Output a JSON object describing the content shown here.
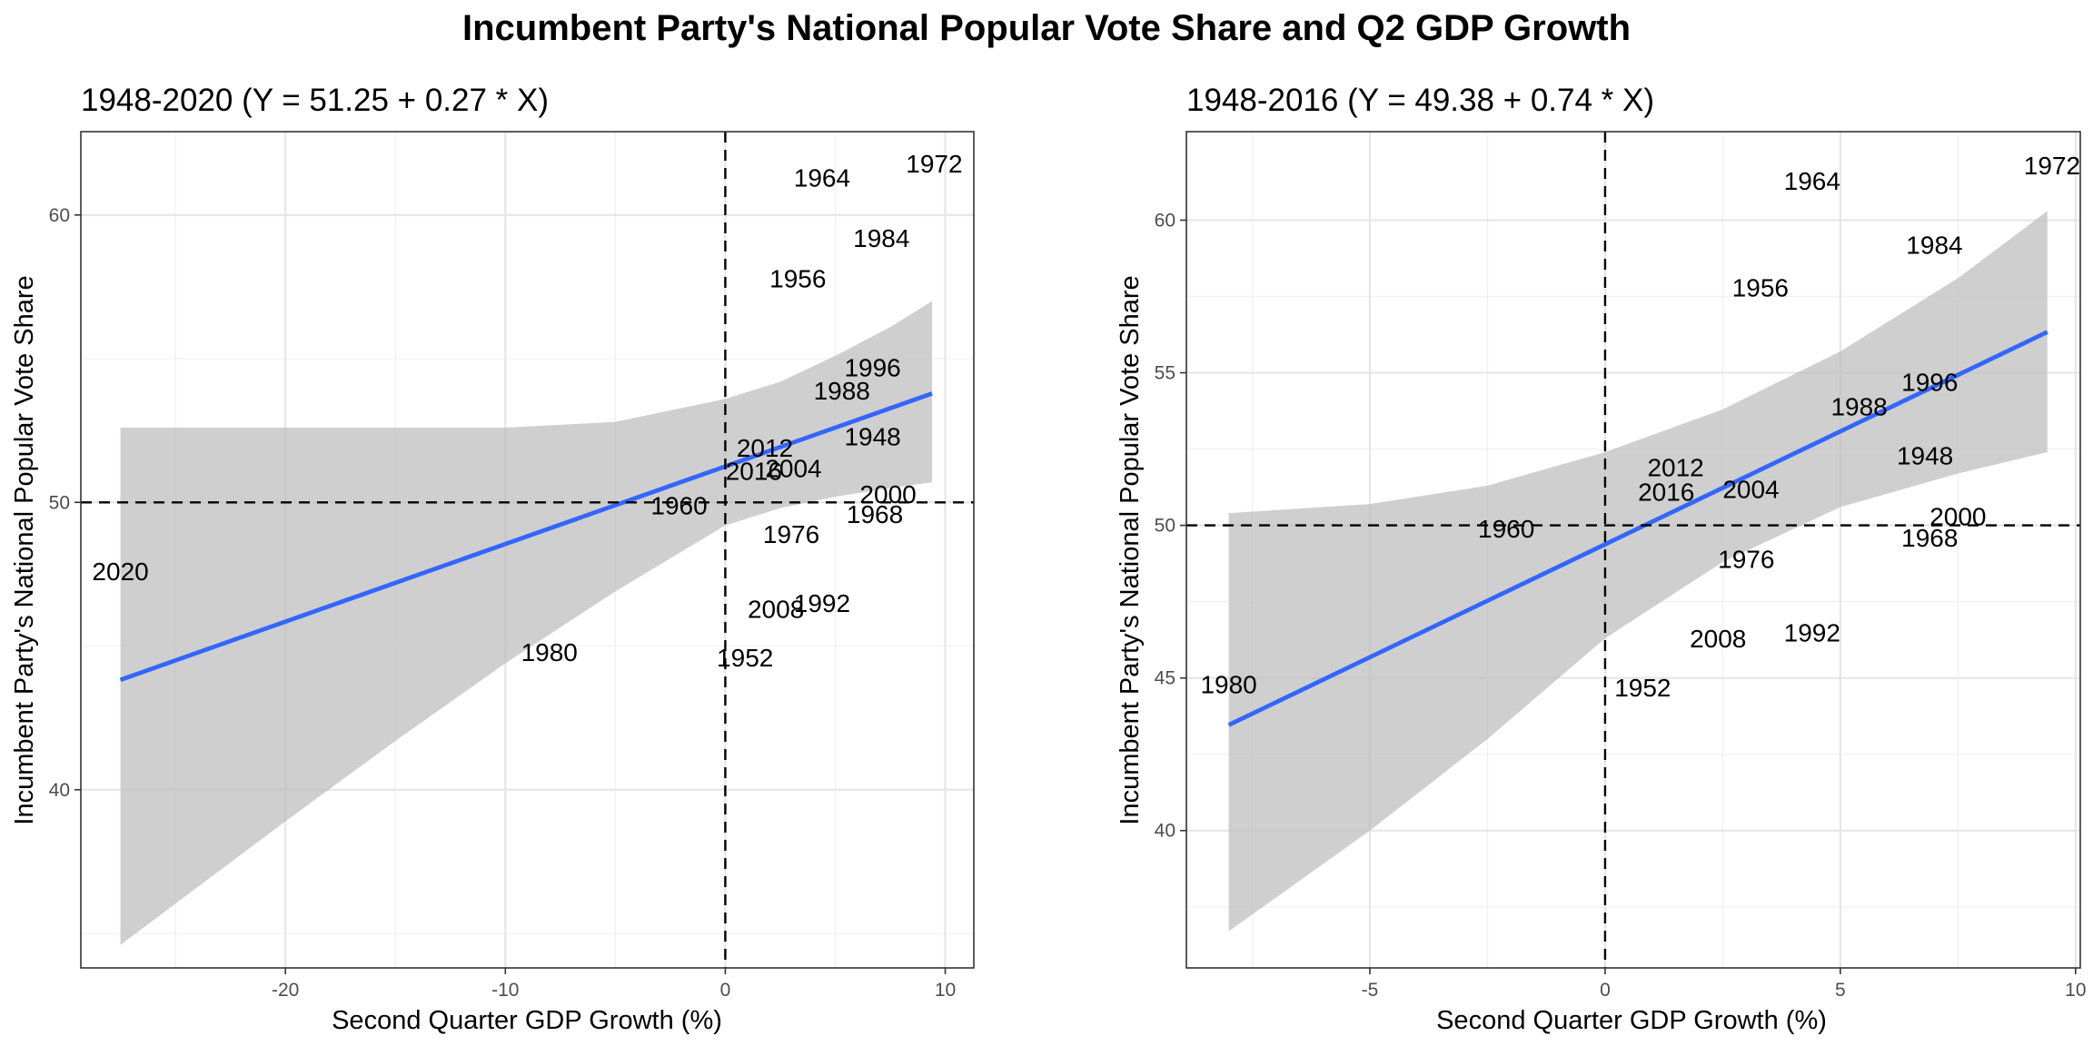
{
  "title": "Incumbent Party's National Popular Vote Share and Q2 GDP Growth",
  "chart_data": [
    {
      "type": "scatter",
      "subtitle": "1948-2020 (Y = 51.25 + 0.27 * X)",
      "xlabel": "Second Quarter GDP Growth (%)",
      "ylabel": "Incumbent Party's National Popular Vote Share",
      "xlim": [
        -29.3,
        11.3
      ],
      "ylim": [
        33.8,
        62.9
      ],
      "xticks": [
        -20,
        -10,
        0,
        10
      ],
      "yticks": [
        40,
        50,
        60
      ],
      "xminor": [
        -25,
        -15,
        -5,
        5
      ],
      "yminor": [
        35,
        45,
        55
      ],
      "grid": true,
      "reference_lines": {
        "x": 0,
        "y": 50
      },
      "fit": {
        "intercept": 51.25,
        "slope": 0.27,
        "color": "#3366FF",
        "x_range": [
          -27.5,
          9.4
        ]
      },
      "confidence_band": {
        "color": "#bdbdbd",
        "x": [
          -27.5,
          -20,
          -15,
          -10,
          -5,
          0,
          2.5,
          5,
          7.5,
          9.4
        ],
        "lower": [
          34.6,
          38.9,
          41.7,
          44.4,
          46.9,
          49.2,
          49.8,
          50.2,
          50.5,
          50.7
        ],
        "upper": [
          52.6,
          52.6,
          52.6,
          52.6,
          52.8,
          53.6,
          54.2,
          55.1,
          56.1,
          57.0
        ]
      },
      "points": [
        {
          "label": "1948",
          "x": 6.7,
          "y": 52.3
        },
        {
          "label": "1952",
          "x": 0.9,
          "y": 44.6
        },
        {
          "label": "1956",
          "x": 3.3,
          "y": 57.8
        },
        {
          "label": "1960",
          "x": -2.1,
          "y": 49.9
        },
        {
          "label": "1964",
          "x": 4.4,
          "y": 61.3
        },
        {
          "label": "1968",
          "x": 6.8,
          "y": 49.6
        },
        {
          "label": "1972",
          "x": 9.5,
          "y": 61.8
        },
        {
          "label": "1976",
          "x": 3.0,
          "y": 48.9
        },
        {
          "label": "1980",
          "x": -8.0,
          "y": 44.8
        },
        {
          "label": "1984",
          "x": 7.1,
          "y": 59.2
        },
        {
          "label": "1988",
          "x": 5.3,
          "y": 53.9
        },
        {
          "label": "1992",
          "x": 4.4,
          "y": 46.5
        },
        {
          "label": "1996",
          "x": 6.7,
          "y": 54.7
        },
        {
          "label": "2000",
          "x": 7.4,
          "y": 50.3
        },
        {
          "label": "2004",
          "x": 3.1,
          "y": 51.2
        },
        {
          "label": "2008",
          "x": 2.3,
          "y": 46.3
        },
        {
          "label": "2012",
          "x": 1.8,
          "y": 51.9
        },
        {
          "label": "2016",
          "x": 1.3,
          "y": 51.1
        },
        {
          "label": "2020",
          "x": -27.5,
          "y": 47.6
        }
      ]
    },
    {
      "type": "scatter",
      "subtitle": "1948-2016 (Y = 49.38 + 0.74 * X)",
      "xlabel": "Second Quarter GDP Growth (%)",
      "ylabel": "Incumbent Party's National Popular Vote Share",
      "xlim": [
        -8.9,
        10.1
      ],
      "ylim": [
        35.5,
        62.9
      ],
      "xticks": [
        -5,
        0,
        5,
        10
      ],
      "yticks": [
        40,
        45,
        50,
        55,
        60
      ],
      "xminor": [
        -7.5,
        -2.5,
        2.5,
        7.5
      ],
      "yminor": [
        37.5,
        42.5,
        47.5,
        52.5,
        57.5
      ],
      "grid": true,
      "reference_lines": {
        "x": 0,
        "y": 50
      },
      "fit": {
        "intercept": 49.38,
        "slope": 0.74,
        "color": "#3366FF",
        "x_range": [
          -8.0,
          9.4
        ]
      },
      "confidence_band": {
        "color": "#bdbdbd",
        "x": [
          -8.0,
          -5,
          -2.5,
          0,
          2.5,
          5,
          7.5,
          9.4
        ],
        "lower": [
          36.7,
          40.0,
          43.0,
          46.3,
          48.8,
          50.6,
          51.7,
          52.4
        ],
        "upper": [
          50.4,
          50.7,
          51.3,
          52.4,
          53.8,
          55.7,
          58.1,
          60.3
        ]
      },
      "points": [
        {
          "label": "1948",
          "x": 6.8,
          "y": 52.3
        },
        {
          "label": "1952",
          "x": 0.8,
          "y": 44.7
        },
        {
          "label": "1956",
          "x": 3.3,
          "y": 57.8
        },
        {
          "label": "1960",
          "x": -2.1,
          "y": 49.9
        },
        {
          "label": "1964",
          "x": 4.4,
          "y": 61.3
        },
        {
          "label": "1968",
          "x": 6.9,
          "y": 49.6
        },
        {
          "label": "1972",
          "x": 9.5,
          "y": 61.8
        },
        {
          "label": "1976",
          "x": 3.0,
          "y": 48.9
        },
        {
          "label": "1980",
          "x": -8.0,
          "y": 44.8
        },
        {
          "label": "1984",
          "x": 7.0,
          "y": 59.2
        },
        {
          "label": "1988",
          "x": 5.4,
          "y": 53.9
        },
        {
          "label": "1992",
          "x": 4.4,
          "y": 46.5
        },
        {
          "label": "1996",
          "x": 6.9,
          "y": 54.7
        },
        {
          "label": "2000",
          "x": 7.5,
          "y": 50.3
        },
        {
          "label": "2004",
          "x": 3.1,
          "y": 51.2
        },
        {
          "label": "2008",
          "x": 2.4,
          "y": 46.3
        },
        {
          "label": "2012",
          "x": 1.5,
          "y": 51.9
        },
        {
          "label": "2016",
          "x": 1.3,
          "y": 51.1
        }
      ]
    }
  ]
}
